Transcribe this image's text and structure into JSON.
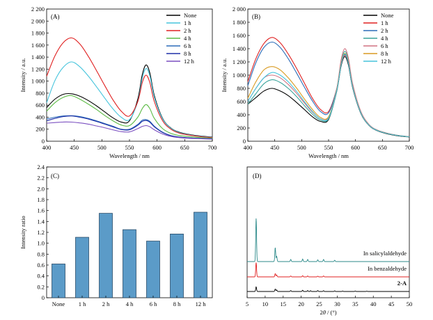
{
  "chart_data": [
    {
      "panel": "(A)",
      "type": "line",
      "xlabel": "Wavelength / nm",
      "ylabel": "Intensity / a.u.",
      "xlim": [
        400,
        700
      ],
      "ylim": [
        0,
        2200
      ],
      "xticks": [
        400,
        450,
        500,
        550,
        600,
        650,
        700
      ],
      "yticks": [
        0,
        200,
        400,
        600,
        800,
        1000,
        1200,
        1400,
        1600,
        1800,
        2000,
        2200
      ],
      "ytick_labels": [
        "0",
        "200",
        "400",
        "600",
        "800",
        "1 000",
        "1 200",
        "1 400",
        "1 600",
        "1 800",
        "2 000",
        "2 200"
      ],
      "legend_position": "top-right",
      "x": [
        400,
        415,
        430,
        445,
        460,
        475,
        490,
        505,
        520,
        535,
        550,
        565,
        573,
        580,
        587,
        595,
        610,
        625,
        640,
        660,
        680,
        700
      ],
      "series": [
        {
          "name": "None",
          "color": "#000000",
          "values": [
            560,
            700,
            780,
            790,
            750,
            680,
            590,
            490,
            390,
            320,
            340,
            700,
            1100,
            1270,
            1130,
            760,
            380,
            220,
            150,
            110,
            85,
            70
          ]
        },
        {
          "name": "1 h",
          "color": "#45c4dc",
          "values": [
            640,
            1010,
            1230,
            1320,
            1240,
            1090,
            910,
            720,
            540,
            400,
            360,
            660,
            1040,
            1210,
            1080,
            730,
            370,
            215,
            145,
            105,
            80,
            65
          ]
        },
        {
          "name": "2 h",
          "color": "#e02020",
          "values": [
            1080,
            1420,
            1640,
            1720,
            1620,
            1420,
            1180,
            930,
            690,
            500,
            420,
            660,
            970,
            1100,
            970,
            660,
            340,
            200,
            135,
            100,
            75,
            60
          ]
        },
        {
          "name": "4 h",
          "color": "#5dbb46",
          "values": [
            500,
            640,
            730,
            760,
            700,
            620,
            530,
            430,
            340,
            270,
            260,
            400,
            540,
            610,
            540,
            380,
            210,
            130,
            95,
            75,
            60,
            50
          ]
        },
        {
          "name": "6 h",
          "color": "#2b6cb8",
          "values": [
            370,
            400,
            420,
            425,
            410,
            380,
            340,
            295,
            250,
            200,
            200,
            280,
            350,
            360,
            330,
            250,
            150,
            95,
            70,
            55,
            45,
            40
          ]
        },
        {
          "name": "8 h",
          "color": "#1f2fa8",
          "values": [
            340,
            380,
            410,
            420,
            400,
            370,
            330,
            285,
            240,
            195,
            190,
            265,
            330,
            345,
            315,
            240,
            145,
            92,
            68,
            54,
            44,
            38
          ]
        },
        {
          "name": "12 h",
          "color": "#7a4ec0",
          "values": [
            300,
            310,
            320,
            318,
            305,
            285,
            255,
            225,
            190,
            160,
            155,
            210,
            245,
            260,
            240,
            190,
            120,
            80,
            60,
            48,
            40,
            35
          ]
        }
      ]
    },
    {
      "panel": "(B)",
      "type": "line",
      "xlabel": "Wavelength / nm",
      "ylabel": "Intensity / a.u.",
      "xlim": [
        400,
        700
      ],
      "ylim": [
        0,
        2000
      ],
      "xticks": [
        400,
        450,
        500,
        550,
        600,
        650,
        700
      ],
      "yticks": [
        0,
        200,
        400,
        600,
        800,
        1000,
        1200,
        1400,
        1600,
        1800,
        2000
      ],
      "ytick_labels": [
        "0",
        "200",
        "400",
        "600",
        "800",
        "1 000",
        "1 200",
        "1 400",
        "1 600",
        "1 800",
        "2 000"
      ],
      "legend_position": "top-right",
      "x": [
        400,
        415,
        430,
        445,
        460,
        475,
        490,
        505,
        520,
        535,
        550,
        565,
        573,
        580,
        587,
        595,
        610,
        625,
        640,
        660,
        680,
        700
      ],
      "series": [
        {
          "name": "None",
          "color": "#000000",
          "values": [
            560,
            660,
            760,
            800,
            760,
            690,
            590,
            480,
            370,
            300,
            330,
            750,
            1130,
            1280,
            1150,
            800,
            420,
            240,
            160,
            110,
            80,
            65
          ]
        },
        {
          "name": "1 h",
          "color": "#e02020",
          "values": [
            900,
            1250,
            1480,
            1570,
            1490,
            1320,
            1110,
            880,
            650,
            480,
            450,
            790,
            1150,
            1300,
            1180,
            820,
            430,
            245,
            165,
            115,
            85,
            68
          ]
        },
        {
          "name": "2 h",
          "color": "#2b6cb8",
          "values": [
            840,
            1190,
            1420,
            1500,
            1420,
            1250,
            1040,
            820,
            610,
            450,
            430,
            790,
            1160,
            1310,
            1180,
            820,
            430,
            245,
            165,
            115,
            85,
            68
          ]
        },
        {
          "name": "4 h",
          "color": "#3aa39a",
          "values": [
            560,
            720,
            870,
            930,
            890,
            800,
            680,
            540,
            410,
            320,
            340,
            760,
            1180,
            1360,
            1220,
            840,
            440,
            250,
            168,
            118,
            86,
            68
          ]
        },
        {
          "name": "6 h",
          "color": "#d07080",
          "values": [
            600,
            800,
            960,
            1000,
            960,
            860,
            730,
            580,
            440,
            340,
            360,
            790,
            1220,
            1400,
            1250,
            860,
            450,
            255,
            170,
            120,
            88,
            70
          ]
        },
        {
          "name": "8 h",
          "color": "#d99a20",
          "values": [
            650,
            900,
            1080,
            1130,
            1080,
            960,
            810,
            640,
            480,
            360,
            370,
            770,
            1160,
            1330,
            1190,
            820,
            430,
            245,
            165,
            115,
            85,
            68
          ]
        },
        {
          "name": "12 h",
          "color": "#45c4dc",
          "values": [
            600,
            800,
            960,
            1040,
            1000,
            900,
            760,
            600,
            450,
            340,
            350,
            760,
            1150,
            1320,
            1180,
            815,
            428,
            244,
            164,
            115,
            85,
            68
          ]
        }
      ]
    },
    {
      "panel": "(C)",
      "type": "bar",
      "ylabel": "Intensity ratio",
      "ylim": [
        0,
        2.4
      ],
      "yticks": [
        0,
        0.2,
        0.4,
        0.6,
        0.8,
        1.0,
        1.2,
        1.4,
        1.6,
        1.8,
        2.0,
        2.2,
        2.4
      ],
      "ytick_labels": [
        "0",
        "0.2",
        "0.4",
        "0.6",
        "0.8",
        "1.0",
        "1.2",
        "1.4",
        "1.6",
        "1.8",
        "2.0",
        "2.2",
        "2.4"
      ],
      "categories": [
        "None",
        "1 h",
        "2 h",
        "4 h",
        "6 h",
        "8 h",
        "12 h"
      ],
      "values": [
        0.62,
        1.11,
        1.55,
        1.25,
        1.04,
        1.17,
        1.57
      ],
      "bar_color": "#5b9bc8"
    },
    {
      "panel": "(D)",
      "type": "line",
      "xlabel_main": "2",
      "xlabel_italic": "θ",
      "xlabel_suffix": " / (°)",
      "xlim": [
        5,
        50
      ],
      "xticks": [
        5,
        10,
        15,
        20,
        25,
        30,
        35,
        40,
        45,
        50
      ],
      "series": [
        {
          "name": "In salicylaldehyde",
          "color": "#2c8a8a",
          "peaks": [
            [
              7.5,
              1.0
            ],
            [
              12.8,
              0.32
            ],
            [
              13.2,
              0.12
            ],
            [
              17.1,
              0.05
            ],
            [
              20.4,
              0.06
            ],
            [
              21.8,
              0.05
            ],
            [
              24.6,
              0.04
            ],
            [
              26.2,
              0.05
            ],
            [
              29.3,
              0.03
            ]
          ]
        },
        {
          "name": "In benzaldehyde",
          "color": "#e02020",
          "peaks": [
            [
              7.5,
              0.62
            ],
            [
              12.8,
              0.14
            ],
            [
              13.2,
              0.08
            ],
            [
              17.1,
              0.04
            ],
            [
              20.4,
              0.05
            ],
            [
              21.8,
              0.04
            ],
            [
              24.6,
              0.03
            ],
            [
              26.2,
              0.04
            ]
          ]
        },
        {
          "name": "2-A",
          "color": "#000000",
          "peaks": [
            [
              7.5,
              0.3
            ],
            [
              12.8,
              0.16
            ],
            [
              13.2,
              0.1
            ],
            [
              17.1,
              0.06
            ],
            [
              20.4,
              0.08
            ],
            [
              21.8,
              0.06
            ],
            [
              22.6,
              0.05
            ],
            [
              24.6,
              0.06
            ],
            [
              26.2,
              0.05
            ],
            [
              29.3,
              0.04
            ],
            [
              31.5,
              0.03
            ],
            [
              35.0,
              0.03
            ],
            [
              38.2,
              0.02
            ]
          ]
        }
      ]
    }
  ]
}
